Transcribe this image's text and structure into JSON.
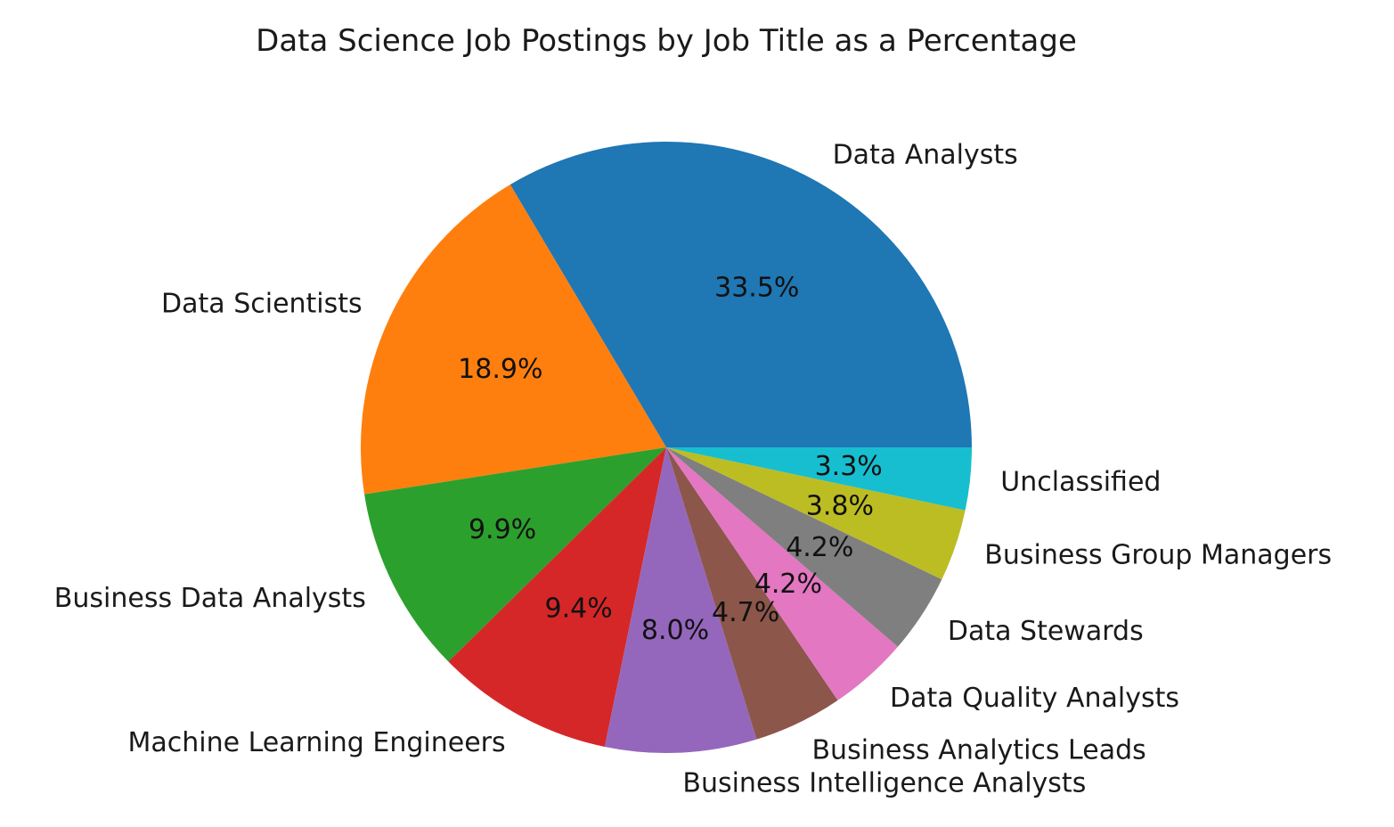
{
  "chart_data": {
    "type": "pie",
    "title": "Data Science Job Postings by Job Title as a Percentage",
    "start_angle_deg": 0,
    "direction": "counterclockwise",
    "slices": [
      {
        "label": "Data Analysts",
        "value": 33.5,
        "pct_text": "33.5%",
        "color": "#1f77b4"
      },
      {
        "label": "Data Scientists",
        "value": 18.9,
        "pct_text": "18.9%",
        "color": "#ff7f0e"
      },
      {
        "label": "Business Data Analysts",
        "value": 9.9,
        "pct_text": "9.9%",
        "color": "#2ca02c"
      },
      {
        "label": "Machine Learning Engineers",
        "value": 9.4,
        "pct_text": "9.4%",
        "color": "#d62728"
      },
      {
        "label": "Business Intelligence Analysts",
        "value": 8.0,
        "pct_text": "8.0%",
        "color": "#9467bd"
      },
      {
        "label": "Business Analytics Leads",
        "value": 4.7,
        "pct_text": "4.7%",
        "color": "#8c564b"
      },
      {
        "label": "Data Quality Analysts",
        "value": 4.2,
        "pct_text": "4.2%",
        "color": "#e377c2"
      },
      {
        "label": "Data Stewards",
        "value": 4.2,
        "pct_text": "4.2%",
        "color": "#7f7f7f"
      },
      {
        "label": "Business Group Managers",
        "value": 3.8,
        "pct_text": "3.8%",
        "color": "#bcbd22"
      },
      {
        "label": "Unclassified",
        "value": 3.3,
        "pct_text": "3.3%",
        "color": "#17becf"
      }
    ]
  }
}
